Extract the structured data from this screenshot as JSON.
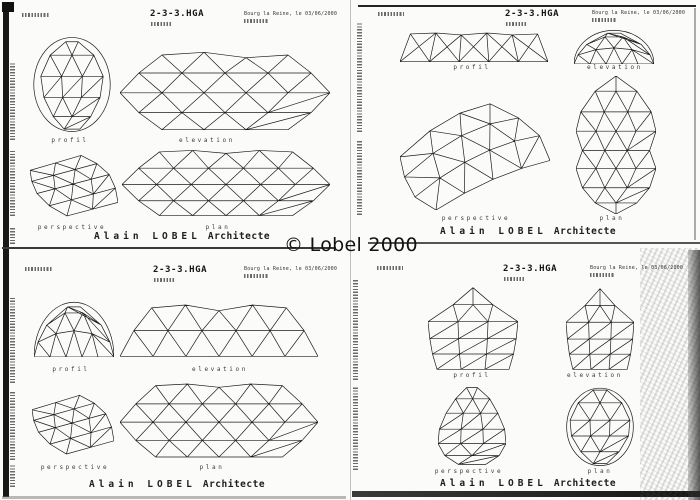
{
  "watermark": "© Lobel 2000",
  "sheet": {
    "title": "2-3-3.HGA",
    "date_line": "Bourg la Reine, le 03/06/2000",
    "author_name": "Alain LOBEL",
    "author_role": "Architecte",
    "view_labels": {
      "profil": "profil",
      "elevation": "elevation",
      "perspective": "perspective",
      "plan": "plan"
    }
  }
}
